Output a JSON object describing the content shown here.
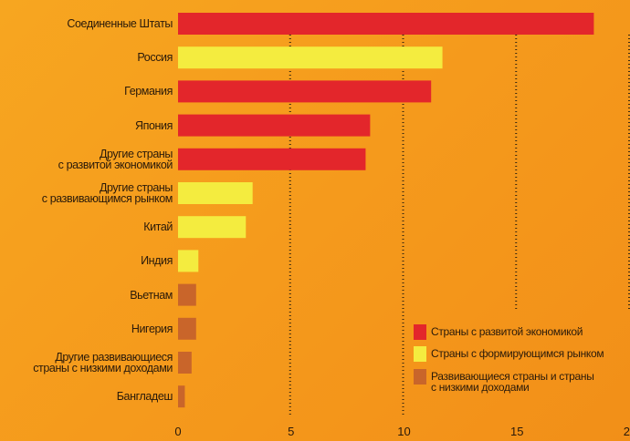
{
  "chart_data": {
    "type": "barh",
    "categories": [
      "Соединенные Штаты",
      "Россия",
      "Германия",
      "Япония",
      "Другие страны\nс развитой экономикой",
      "Другие страны\nс развивающимся рынком",
      "Китай",
      "Индия",
      "Вьетнам",
      "Нигерия",
      "Другие развивающиеся\nстраны с низкими доходами",
      "Бангладеш"
    ],
    "values": [
      18.4,
      11.7,
      11.2,
      8.5,
      8.3,
      3.3,
      3.0,
      0.9,
      0.8,
      0.8,
      0.6,
      0.3
    ],
    "colors": [
      "#e3262b",
      "#f4ec3f",
      "#e3262b",
      "#e3262b",
      "#e3262b",
      "#f4ec3f",
      "#f4ec3f",
      "#f4ec3f",
      "#c9652a",
      "#c9652a",
      "#c9652a",
      "#c9652a"
    ],
    "xlim": [
      0,
      20
    ],
    "xticks": [
      0,
      5,
      10,
      15,
      20
    ],
    "grid": true,
    "legend": [
      {
        "name": "Страны с развитой экономикой",
        "color": "#e3262b"
      },
      {
        "name": "Страны с формирующимся рынком",
        "color": "#f4ec3f"
      },
      {
        "name": "Развивающиеся страны и страны\nс низкими доходами",
        "color": "#c9652a"
      }
    ]
  }
}
